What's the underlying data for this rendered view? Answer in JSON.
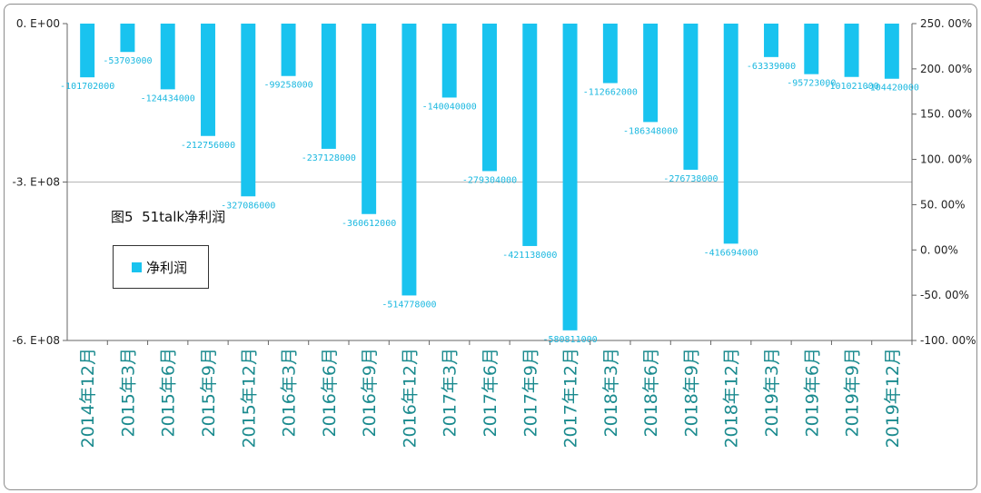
{
  "chart_data": {
    "type": "bar",
    "title": "图5  51talk净利润",
    "categories": [
      "2014年12月",
      "2015年3月",
      "2015年6月",
      "2015年9月",
      "2015年12月",
      "2016年3月",
      "2016年6月",
      "2016年9月",
      "2016年12月",
      "2017年3月",
      "2017年6月",
      "2017年9月",
      "2017年12月",
      "2018年3月",
      "2018年6月",
      "2018年9月",
      "2018年12月",
      "2019年3月",
      "2019年6月",
      "2019年9月",
      "2019年12月"
    ],
    "series": [
      {
        "name": "净利润",
        "values": [
          -101702000,
          -53703000,
          -124434000,
          -212756000,
          -327086000,
          -99258000,
          -237128000,
          -360612000,
          -514778000,
          -140040000,
          -279304000,
          -421138000,
          -580811000,
          -112662000,
          -186348000,
          -276738000,
          -416694000,
          -63339000,
          -95723000,
          -101021000,
          -104420000
        ],
        "data_labels": [
          "-101702000",
          "-53703000",
          "-124434000",
          "-212756000",
          "-327086000",
          "-99258000",
          "-237128000",
          "-360612000",
          "-514778000",
          "-140040000",
          "-279304000",
          "-421138000",
          "-580811000",
          "-112662000",
          "-186348000",
          "-276738000",
          "-416694000",
          "-63339000",
          "-95723000",
          "-101021000",
          "-104420000"
        ],
        "color": "#19c3ef"
      }
    ],
    "y_left": {
      "min": -600000000,
      "max": 0,
      "ticks": [
        0,
        -300000000,
        -600000000
      ],
      "tick_labels": [
        "0. E+00",
        "-3. E+08",
        "-6. E+08"
      ]
    },
    "y_right": {
      "min": -100,
      "max": 250,
      "ticks": [
        250,
        200,
        150,
        100,
        50,
        0,
        -50,
        -100
      ],
      "tick_labels": [
        "250. 00%",
        "200. 00%",
        "150. 00%",
        "100. 00%",
        "50. 00%",
        "0. 00%",
        "-50. 00%",
        "-100. 00%"
      ]
    },
    "gridlines": [
      -300000000
    ],
    "legend_position": "left",
    "category_label_color": "#1a8a8e",
    "data_label_color": "#1ab8e0"
  }
}
